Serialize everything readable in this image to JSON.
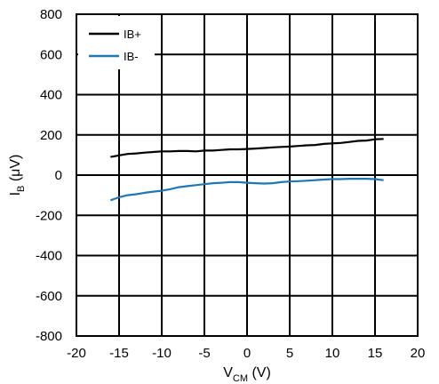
{
  "chart_data": {
    "type": "line",
    "xlabel": {
      "main": "V",
      "sub": "CM",
      "unit": " (V)"
    },
    "ylabel": {
      "main": "I",
      "sub": "B",
      "unit": " (μV)"
    },
    "xlim": [
      -20,
      20
    ],
    "ylim": [
      -800,
      800
    ],
    "xticks": [
      -20,
      -15,
      -10,
      -5,
      0,
      5,
      10,
      15,
      20
    ],
    "yticks": [
      800,
      600,
      400,
      200,
      0,
      -200,
      -400,
      -600,
      -800
    ],
    "grid": true,
    "legend_position": "top-left",
    "series": [
      {
        "name": "IB+",
        "color": "#000000",
        "x": [
          -16,
          -15,
          -14,
          -13,
          -12,
          -11,
          -10,
          -9,
          -8,
          -7,
          -6,
          -5,
          -4,
          -3,
          -2,
          -1,
          0,
          1,
          2,
          3,
          4,
          5,
          6,
          7,
          8,
          9,
          10,
          11,
          12,
          13,
          14,
          15,
          16
        ],
        "y": [
          90,
          98,
          105,
          108,
          112,
          115,
          118,
          118,
          120,
          120,
          118,
          122,
          122,
          125,
          128,
          128,
          130,
          132,
          135,
          138,
          140,
          142,
          145,
          148,
          150,
          155,
          158,
          160,
          165,
          170,
          172,
          178,
          180
        ]
      },
      {
        "name": "IB-",
        "color": "#1f77b4",
        "x": [
          -16,
          -15,
          -14,
          -13,
          -12,
          -11,
          -10,
          -9,
          -8,
          -7,
          -6,
          -5,
          -4,
          -3,
          -2,
          -1,
          0,
          1,
          2,
          3,
          4,
          5,
          6,
          7,
          8,
          9,
          10,
          11,
          12,
          13,
          14,
          15,
          16
        ],
        "y": [
          -125,
          -110,
          -100,
          -95,
          -88,
          -82,
          -78,
          -70,
          -60,
          -55,
          -50,
          -45,
          -40,
          -38,
          -35,
          -35,
          -38,
          -40,
          -42,
          -40,
          -35,
          -32,
          -30,
          -28,
          -25,
          -22,
          -20,
          -20,
          -18,
          -18,
          -18,
          -20,
          -25
        ]
      }
    ]
  }
}
